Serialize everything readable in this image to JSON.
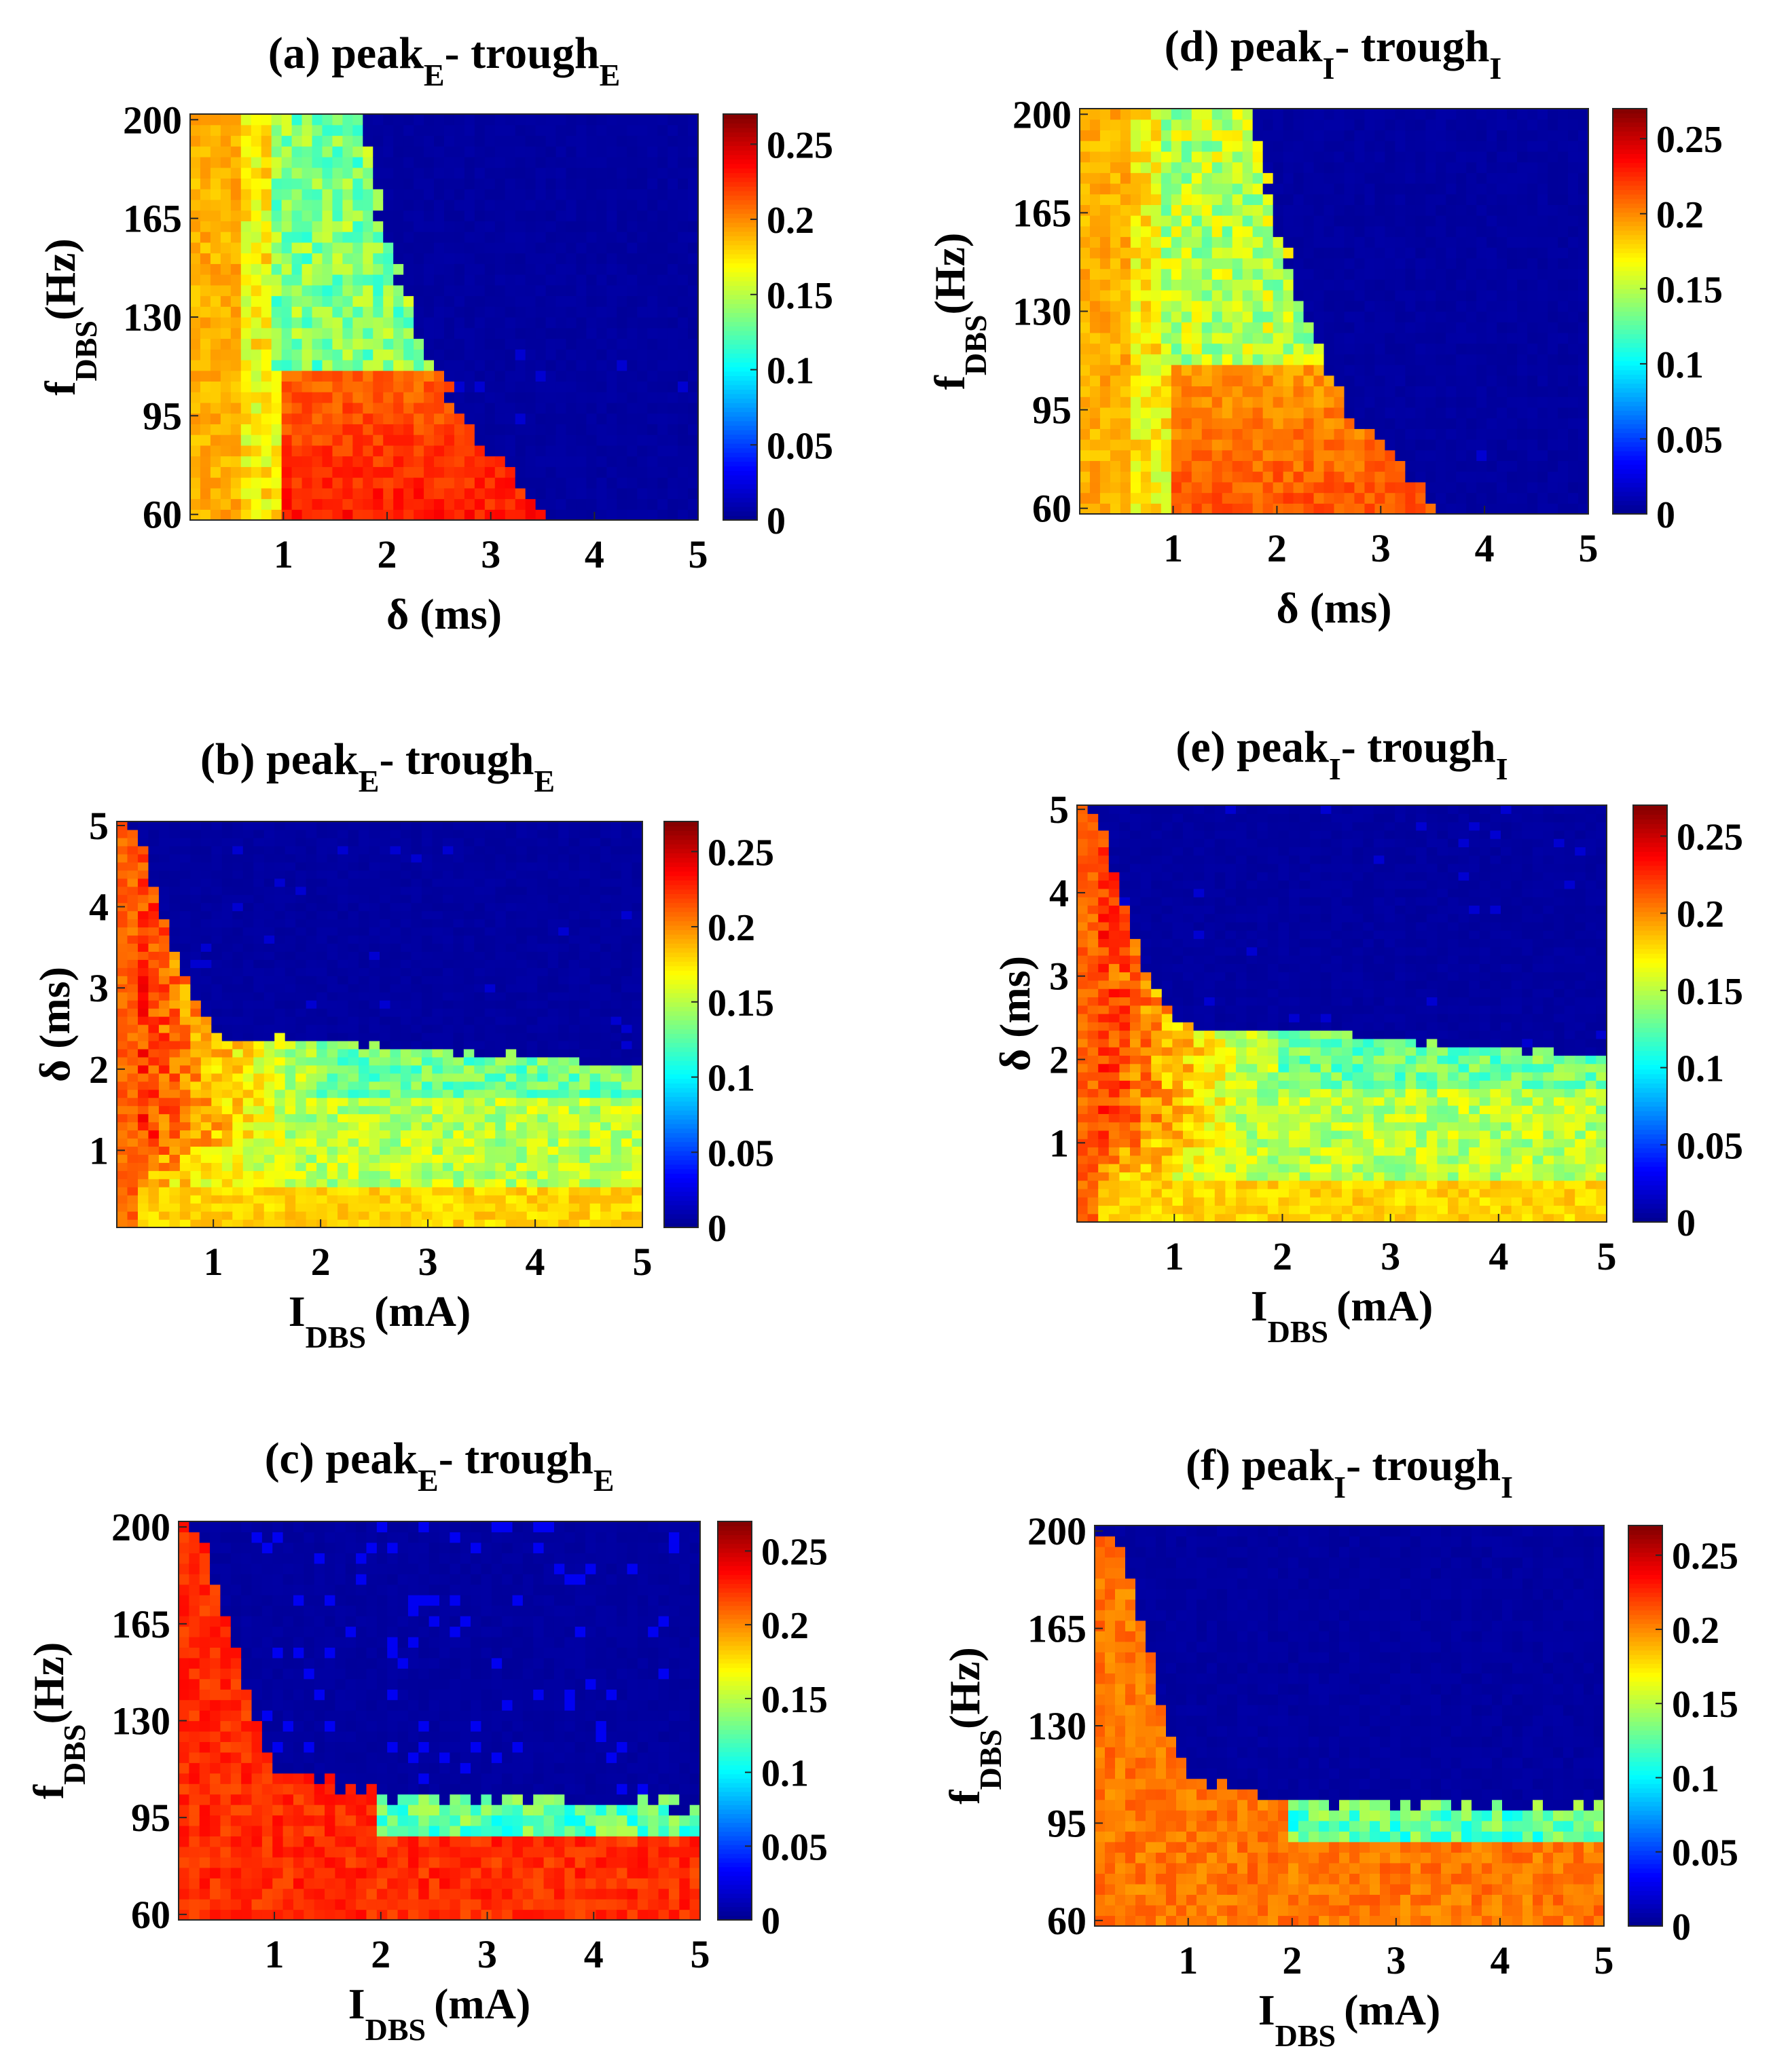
{
  "figure": {
    "colormap": "jet",
    "colormap_stops": [
      "#00008f",
      "#0000ff",
      "#00ffff",
      "#ffff00",
      "#ff0000",
      "#800000"
    ],
    "colorbar_range": [
      0,
      0.27
    ],
    "colorbar_ticks": [
      "0",
      "0.05",
      "0.1",
      "0.15",
      "0.2",
      "0.25"
    ]
  },
  "chart_data": [
    {
      "id": "a",
      "type": "heatmap",
      "title": {
        "prefix": "(a) peak",
        "sub1": "E",
        "mid": "- trough",
        "sub2": "E"
      },
      "x": {
        "var": "delta",
        "label": "δ (ms)",
        "range": [
          0.1,
          5.0
        ],
        "ticks": [
          "1",
          "2",
          "3",
          "4",
          "5"
        ]
      },
      "y": {
        "var": "fdbs",
        "label_main": "f",
        "label_sub": "DBS",
        "label_unit": "(Hz)",
        "range": [
          58,
          202
        ],
        "ticks": [
          "60",
          "95",
          "130",
          "165",
          "200"
        ]
      },
      "model": "delta_fdbs",
      "target": "E",
      "grid": [
        50,
        38
      ]
    },
    {
      "id": "b",
      "type": "heatmap",
      "title": {
        "prefix": "(b) peak",
        "sub1": "E",
        "mid": "- trough",
        "sub2": "E"
      },
      "x": {
        "var": "idbs",
        "label_main": "I",
        "label_sub": "DBS",
        "label_unit": "(mA)",
        "range": [
          0.1,
          5.0
        ],
        "ticks": [
          "1",
          "2",
          "3",
          "4",
          "5"
        ]
      },
      "y": {
        "var": "delta",
        "label": "δ (ms)",
        "range": [
          0.05,
          5.05
        ],
        "ticks": [
          "1",
          "2",
          "3",
          "4",
          "5"
        ]
      },
      "model": "idbs_delta",
      "target": "E",
      "grid": [
        50,
        50
      ]
    },
    {
      "id": "c",
      "type": "heatmap",
      "title": {
        "prefix": "(c) peak",
        "sub1": "E",
        "mid": "- trough",
        "sub2": "E"
      },
      "x": {
        "var": "idbs",
        "label_main": "I",
        "label_sub": "DBS",
        "label_unit": "(mA)",
        "range": [
          0.1,
          5.0
        ],
        "ticks": [
          "1",
          "2",
          "3",
          "4",
          "5"
        ]
      },
      "y": {
        "var": "fdbs",
        "label_main": "f",
        "label_sub": "DBS",
        "label_unit": "(Hz)",
        "range": [
          58,
          202
        ],
        "ticks": [
          "60",
          "95",
          "130",
          "165",
          "200"
        ]
      },
      "model": "idbs_fdbs",
      "target": "E",
      "grid": [
        50,
        38
      ]
    },
    {
      "id": "d",
      "type": "heatmap",
      "title": {
        "prefix": "(d) peak",
        "sub1": "I",
        "mid": "- trough",
        "sub2": "I"
      },
      "x": {
        "var": "delta",
        "label": "δ (ms)",
        "range": [
          0.1,
          5.0
        ],
        "ticks": [
          "1",
          "2",
          "3",
          "4",
          "5"
        ]
      },
      "y": {
        "var": "fdbs",
        "label_main": "f",
        "label_sub": "DBS",
        "label_unit": "(Hz)",
        "range": [
          58,
          202
        ],
        "ticks": [
          "60",
          "95",
          "130",
          "165",
          "200"
        ]
      },
      "model": "delta_fdbs",
      "target": "I",
      "grid": [
        50,
        38
      ]
    },
    {
      "id": "e",
      "type": "heatmap",
      "title": {
        "prefix": "(e) peak",
        "sub1": "I",
        "mid": "- trough",
        "sub2": "I"
      },
      "x": {
        "var": "idbs",
        "label_main": "I",
        "label_sub": "DBS",
        "label_unit": "(mA)",
        "range": [
          0.1,
          5.0
        ],
        "ticks": [
          "1",
          "2",
          "3",
          "4",
          "5"
        ]
      },
      "y": {
        "var": "delta",
        "label": "δ (ms)",
        "range": [
          0.05,
          5.05
        ],
        "ticks": [
          "1",
          "2",
          "3",
          "4",
          "5"
        ]
      },
      "model": "idbs_delta",
      "target": "I",
      "grid": [
        50,
        50
      ]
    },
    {
      "id": "f",
      "type": "heatmap",
      "title": {
        "prefix": "(f) peak",
        "sub1": "I",
        "mid": "- trough",
        "sub2": "I"
      },
      "x": {
        "var": "idbs",
        "label_main": "I",
        "label_sub": "DBS",
        "label_unit": "(mA)",
        "range": [
          0.1,
          5.0
        ],
        "ticks": [
          "1",
          "2",
          "3",
          "4",
          "5"
        ]
      },
      "y": {
        "var": "fdbs",
        "label_main": "f",
        "label_sub": "DBS",
        "label_unit": "(Hz)",
        "range": [
          58,
          202
        ],
        "ticks": [
          "60",
          "95",
          "130",
          "165",
          "200"
        ]
      },
      "model": "idbs_fdbs",
      "target": "I",
      "grid": [
        50,
        38
      ]
    }
  ]
}
